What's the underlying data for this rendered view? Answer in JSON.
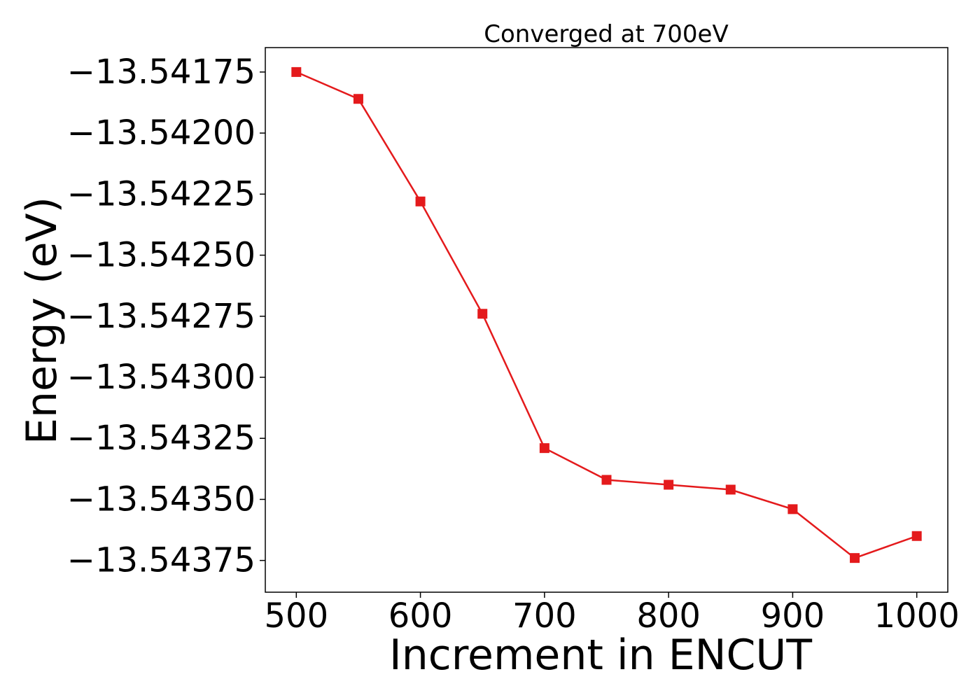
{
  "chart_data": {
    "type": "line",
    "title": "Converged at 700eV",
    "xlabel": "Increment in ENCUT",
    "ylabel": "Energy (eV)",
    "x": [
      500,
      550,
      600,
      650,
      700,
      750,
      800,
      850,
      900,
      950,
      1000
    ],
    "series": [
      {
        "values": [
          -13.54175,
          -13.54186,
          -13.54228,
          -13.54274,
          -13.54329,
          -13.54342,
          -13.54344,
          -13.54346,
          -13.54354,
          -13.54374,
          -13.54365
        ],
        "color": "#e41a1c",
        "marker": "square"
      }
    ],
    "xlim": [
      475,
      1025
    ],
    "ylim": [
      -13.54388,
      -13.54165
    ],
    "xticks": [
      500,
      600,
      700,
      800,
      900,
      1000
    ],
    "xtick_labels": [
      "500",
      "600",
      "700",
      "800",
      "900",
      "1000"
    ],
    "yticks": [
      -13.54175,
      -13.542,
      -13.54225,
      -13.5425,
      -13.54275,
      -13.543,
      -13.54325,
      -13.5435,
      -13.54375
    ],
    "ytick_labels": [
      "−13.54175",
      "−13.54200",
      "−13.54225",
      "−13.54250",
      "−13.54275",
      "−13.54300",
      "−13.54325",
      "−13.54350",
      "−13.54375"
    ],
    "grid": false,
    "legend": "none"
  }
}
